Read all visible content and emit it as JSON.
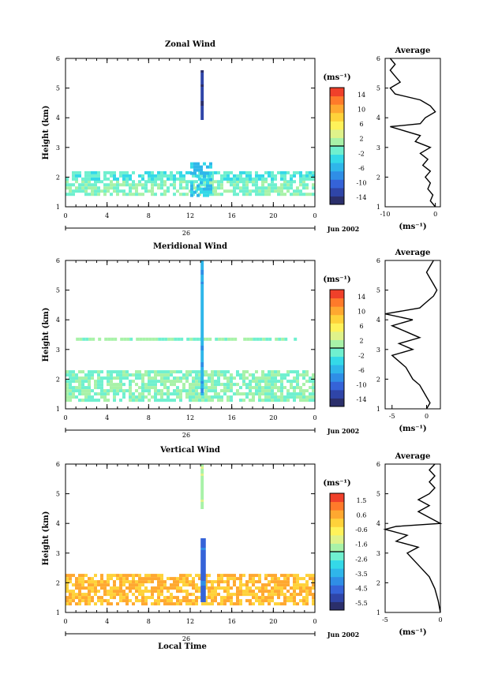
{
  "figure": {
    "x_label": "Local Time",
    "day_label": "26",
    "date_label": "Jun 2002"
  },
  "colors": {
    "scale": [
      "#2b2f6b",
      "#2f45a8",
      "#3563d8",
      "#2f8ee6",
      "#2fb6ea",
      "#34d9e8",
      "#6ff0cf",
      "#a8f2a8",
      "#dff28a",
      "#fff25a",
      "#ffd23a",
      "#ffa830",
      "#ff7a2a",
      "#f0402a"
    ],
    "axis": "#000000"
  },
  "chart_data": [
    {
      "type": "heatmap",
      "title": "Zonal Wind",
      "xlabel": "Local Time",
      "ylabel": "Height (km)",
      "xlim": [
        0,
        24
      ],
      "ylim": [
        1,
        6
      ],
      "x_ticks": [
        "0",
        "4",
        "8",
        "12",
        "16",
        "20",
        "0"
      ],
      "y_ticks": [
        "1",
        "2",
        "3",
        "4",
        "5",
        "6"
      ],
      "colorbar": {
        "unit": "(ms⁻¹)",
        "ticks": [
          "14",
          "10",
          "6",
          "2",
          "-2",
          "-6",
          "-10",
          "-14"
        ],
        "range": [
          -16,
          16
        ]
      },
      "fields": [
        {
          "x": [
            0,
            24
          ],
          "y": [
            1.4,
            1.9
          ],
          "value": 0
        },
        {
          "x": [
            0,
            24
          ],
          "y": [
            1.9,
            2.2
          ],
          "value": -2
        },
        {
          "x": [
            12,
            14
          ],
          "y": [
            1.4,
            2.5
          ],
          "value": -5
        },
        {
          "x": [
            13,
            13.3
          ],
          "y": [
            4.0,
            5.6
          ],
          "value": -13
        }
      ],
      "average_profile": {
        "title": "Average",
        "unit": "(ms⁻¹)",
        "xlim": [
          -10,
          1
        ],
        "x_ticks": [
          "-10",
          "0"
        ],
        "y_ticks": [
          "1",
          "2",
          "3",
          "4",
          "5",
          "6"
        ],
        "height": [
          1.0,
          1.2,
          1.4,
          1.6,
          1.8,
          2.0,
          2.2,
          2.4,
          2.6,
          2.8,
          3.0,
          3.2,
          3.4,
          3.6,
          3.7,
          3.8,
          4.0,
          4.2,
          4.4,
          4.6,
          4.8,
          5.0,
          5.2,
          5.4,
          5.6,
          5.8,
          6.0
        ],
        "value": [
          0,
          -1,
          -0.5,
          -1.5,
          -1,
          -2,
          -1,
          -2.5,
          -1.5,
          -3,
          -1,
          -4,
          -3,
          -7,
          -9,
          -3,
          -2,
          0,
          -1,
          -3,
          -8,
          -9,
          -7,
          -8,
          -9,
          -8,
          -9
        ]
      }
    },
    {
      "type": "heatmap",
      "title": "Meridional Wind",
      "xlabel": "Local Time",
      "ylabel": "Height (km)",
      "xlim": [
        0,
        24
      ],
      "ylim": [
        1,
        6
      ],
      "x_ticks": [
        "0",
        "4",
        "8",
        "12",
        "16",
        "20",
        "0"
      ],
      "y_ticks": [
        "1",
        "2",
        "3",
        "4",
        "5",
        "6"
      ],
      "colorbar": {
        "unit": "(ms⁻¹)",
        "ticks": [
          "14",
          "10",
          "6",
          "2",
          "-2",
          "-6",
          "-10",
          "-14"
        ],
        "range": [
          -16,
          16
        ]
      },
      "fields": [
        {
          "x": [
            0,
            24
          ],
          "y": [
            1.3,
            2.3
          ],
          "value": 0
        },
        {
          "x": [
            1,
            23
          ],
          "y": [
            3.3,
            3.4
          ],
          "value": 0
        },
        {
          "x": [
            13,
            13.3
          ],
          "y": [
            1.5,
            6.0
          ],
          "value": -6
        }
      ],
      "average_profile": {
        "title": "Average",
        "unit": "(ms⁻¹)",
        "xlim": [
          -6,
          2
        ],
        "x_ticks": [
          "-5",
          "0"
        ],
        "y_ticks": [
          "1",
          "2",
          "3",
          "4",
          "5",
          "6"
        ],
        "height": [
          1.0,
          1.2,
          1.4,
          1.6,
          1.8,
          2.0,
          2.4,
          2.8,
          3.0,
          3.2,
          3.4,
          3.6,
          3.8,
          4.0,
          4.2,
          4.4,
          4.6,
          4.8,
          5.0,
          5.2,
          5.4,
          5.6,
          5.8,
          6.0
        ],
        "value": [
          0,
          0.5,
          0,
          -0.5,
          -1,
          -2,
          -3,
          -5,
          -2,
          -4,
          -1,
          -3,
          -5,
          -2,
          -6,
          -1,
          0,
          1,
          1.5,
          1,
          0.5,
          0,
          0.5,
          1
        ]
      }
    },
    {
      "type": "heatmap",
      "title": "Vertical Wind",
      "xlabel": "Local Time",
      "ylabel": "Height (km)",
      "xlim": [
        0,
        24
      ],
      "ylim": [
        1,
        6
      ],
      "x_ticks": [
        "0",
        "4",
        "8",
        "12",
        "16",
        "20",
        "0"
      ],
      "y_ticks": [
        "1",
        "2",
        "3",
        "4",
        "5",
        "6"
      ],
      "colorbar": {
        "unit": "(ms⁻¹)",
        "ticks": [
          "1.5",
          "0.6",
          "-0.6",
          "-1.6",
          "-2.6",
          "-3.5",
          "-4.5",
          "-5.5"
        ],
        "range": [
          -6,
          2
        ]
      },
      "fields": [
        {
          "x": [
            0,
            24
          ],
          "y": [
            1.3,
            2.3
          ],
          "value": 0.3
        },
        {
          "x": [
            13,
            13.5
          ],
          "y": [
            1.4,
            3.5
          ],
          "value": -4.5
        },
        {
          "x": [
            13,
            13.3
          ],
          "y": [
            4.5,
            6.0
          ],
          "value": -1.6
        }
      ],
      "average_profile": {
        "title": "Average",
        "unit": "(ms⁻¹)",
        "xlim": [
          -5,
          0
        ],
        "x_ticks": [
          "-5",
          "0"
        ],
        "y_ticks": [
          "1",
          "2",
          "3",
          "4",
          "5",
          "6"
        ],
        "height": [
          1.0,
          1.4,
          1.8,
          2.2,
          2.6,
          3.0,
          3.2,
          3.4,
          3.6,
          3.8,
          3.9,
          4.0,
          4.2,
          4.4,
          4.6,
          4.8,
          5.0,
          5.2,
          5.4,
          5.6,
          5.8,
          6.0
        ],
        "value": [
          0,
          -0.2,
          -0.5,
          -1,
          -2,
          -3,
          -2,
          -4,
          -3,
          -5,
          -4,
          0,
          -1,
          -2,
          -1,
          -2,
          -1,
          -0.5,
          -1,
          -0.5,
          -1,
          -0.5
        ]
      }
    }
  ]
}
